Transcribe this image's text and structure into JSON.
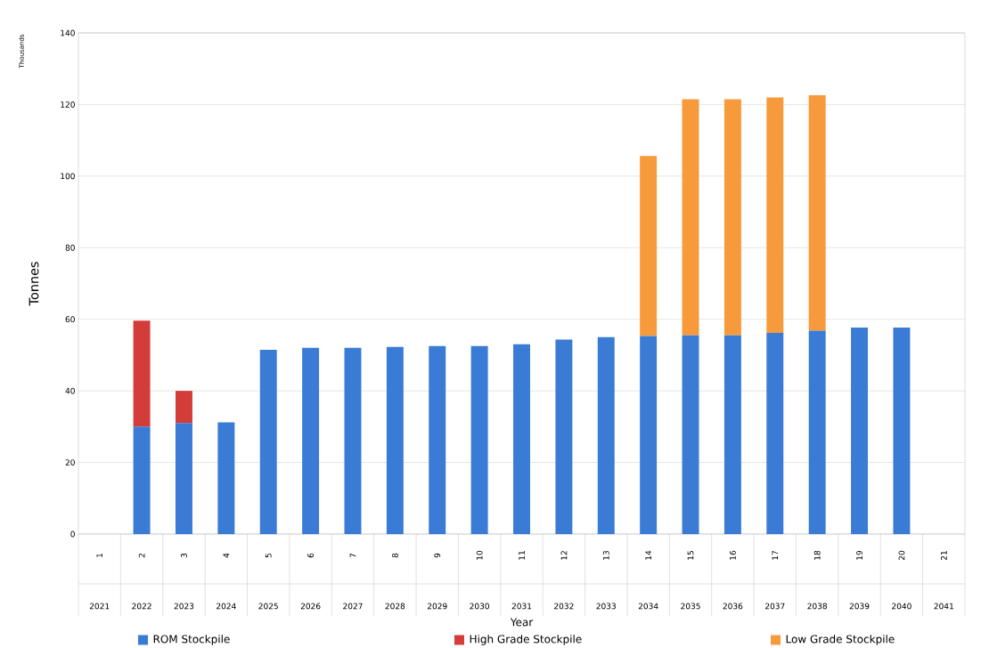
{
  "chart_data": {
    "type": "bar",
    "stacked": true,
    "xlabel": "Year",
    "ylabel": "Tonnes",
    "categories": [
      "2021",
      "2022",
      "2023",
      "2024",
      "2025",
      "2026",
      "2027",
      "2028",
      "2029",
      "2030",
      "2031",
      "2032",
      "2033",
      "2034",
      "2035",
      "2036",
      "2037",
      "2038",
      "2039",
      "2040",
      "2041"
    ],
    "series": [
      {
        "name": "ROM Stockpile",
        "color": "#3a7bd5",
        "values": [
          null,
          30,
          31,
          31.2,
          51.5,
          52,
          52,
          52.3,
          52.5,
          52.5,
          53,
          54.3,
          55,
          55.3,
          55.5,
          55.5,
          56.2,
          56.8,
          57.7,
          57.7,
          null
        ]
      },
      {
        "name": "High Grade Stockpile",
        "color": "#d43c3a",
        "values": [
          null,
          29.6,
          9,
          null,
          null,
          null,
          null,
          null,
          null,
          null,
          null,
          null,
          null,
          null,
          null,
          null,
          null,
          null,
          null,
          null,
          null
        ]
      },
      {
        "name": "Low Grade Stockpile",
        "color": "#f79a3b",
        "values": [
          null,
          null,
          null,
          null,
          null,
          null,
          null,
          null,
          null,
          null,
          null,
          null,
          null,
          50.3,
          66,
          66,
          65.8,
          65.8,
          null,
          null,
          null
        ]
      }
    ],
    "ylim": [
      0,
      140
    ],
    "yticks": [
      0,
      20,
      40,
      60,
      80,
      100,
      120,
      140
    ],
    "grid": "y",
    "legend": "bottom",
    "annotations": [
      "Thousands",
      "1",
      "2",
      "3",
      "4",
      "5",
      "6",
      "7",
      "8",
      "9",
      "10",
      "11",
      "12",
      "13",
      "14",
      "15",
      "16",
      "17",
      "18",
      "19",
      "20",
      "21"
    ]
  }
}
